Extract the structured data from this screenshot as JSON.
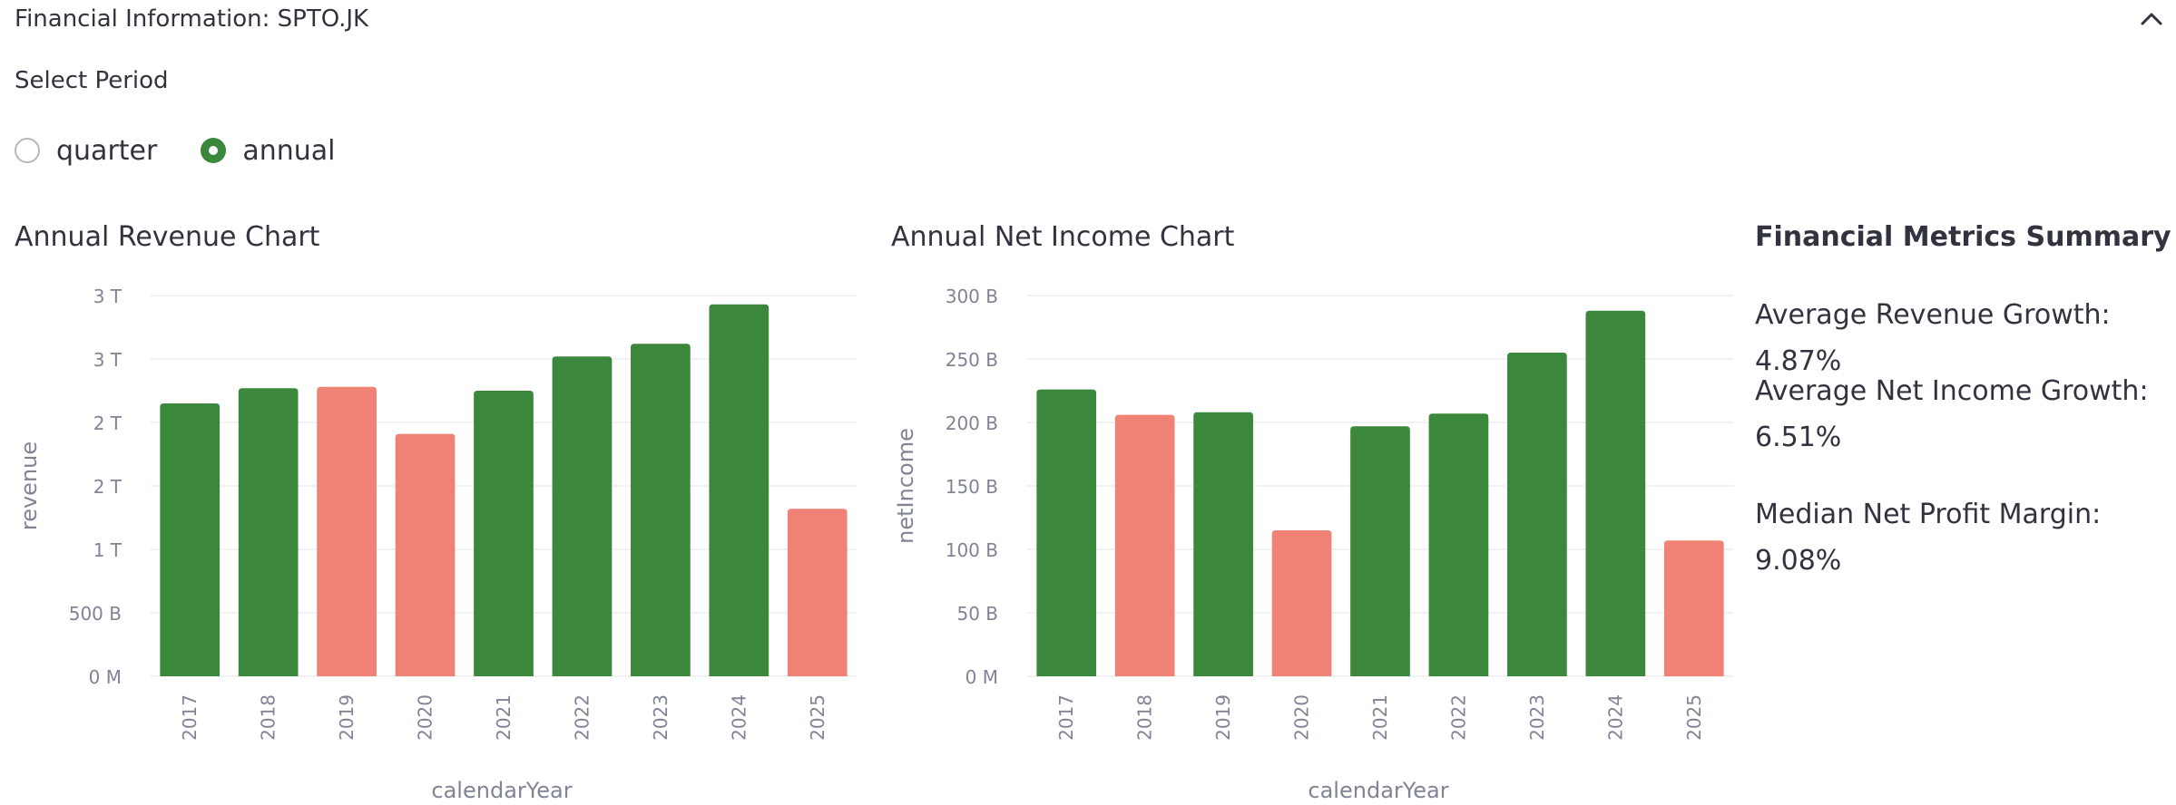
{
  "expander": {
    "title": "Financial Information: SPTO.JK",
    "chevron_icon": "chevron-up-icon"
  },
  "period": {
    "label": "Select Period",
    "options": [
      {
        "label": "quarter",
        "selected": false
      },
      {
        "label": "annual",
        "selected": true
      }
    ]
  },
  "colors": {
    "positive": "#3b873b",
    "negative": "#f08275",
    "grid": "#e6e6e6",
    "axis_text": "#808495"
  },
  "revenue_chart": {
    "title": "Annual Revenue Chart",
    "chart_data": {
      "type": "bar",
      "title": "Annual Revenue Chart",
      "xlabel": "calendarYear",
      "ylabel": "revenue",
      "categories": [
        "2017",
        "2018",
        "2019",
        "2020",
        "2021",
        "2022",
        "2023",
        "2024",
        "2025"
      ],
      "values": [
        2.15,
        2.27,
        2.28,
        1.91,
        2.25,
        2.52,
        2.62,
        2.93,
        1.32
      ],
      "value_unit": "T",
      "direction": [
        "up",
        "up",
        "down",
        "down",
        "up",
        "up",
        "up",
        "up",
        "down"
      ],
      "yticks": [
        "0 M",
        "500 B",
        "1 T",
        "2 T",
        "2 T",
        "3 T",
        "3 T"
      ],
      "ylim": [
        0,
        3.0
      ],
      "grid": true
    }
  },
  "income_chart": {
    "title": "Annual Net Income Chart",
    "chart_data": {
      "type": "bar",
      "title": "Annual Net Income Chart",
      "xlabel": "calendarYear",
      "ylabel": "netIncome",
      "categories": [
        "2017",
        "2018",
        "2019",
        "2020",
        "2021",
        "2022",
        "2023",
        "2024",
        "2025"
      ],
      "values": [
        226,
        206,
        208,
        115,
        197,
        207,
        255,
        288,
        107
      ],
      "value_unit": "B",
      "direction": [
        "up",
        "down",
        "up",
        "down",
        "up",
        "up",
        "up",
        "up",
        "down"
      ],
      "yticks": [
        "0 M",
        "50 B",
        "100 B",
        "150 B",
        "200 B",
        "250 B",
        "300 B"
      ],
      "ylim": [
        0,
        300
      ],
      "grid": true
    }
  },
  "metrics": {
    "title": "Financial Metrics Summary",
    "revenue_growth": "Average Revenue Growth: 4.87%",
    "net_income_growth": "Average Net Income Growth: 6.51%",
    "net_profit_margin": "Median Net Profit Margin: 9.08%"
  }
}
